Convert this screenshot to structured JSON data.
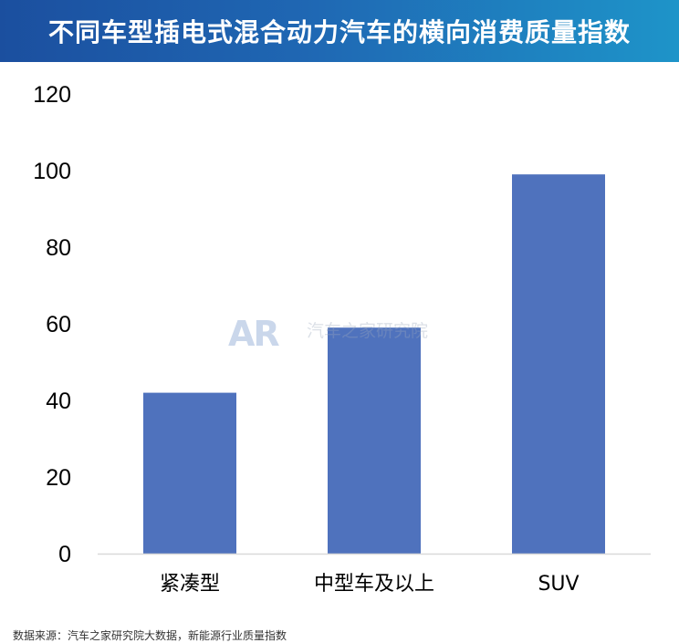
{
  "header": {
    "title": "不同车型插电式混合动力汽车的横向消费质量指数"
  },
  "watermark": {
    "logo": "AR",
    "text": "汽车之家研究院"
  },
  "source_note": "数据来源：汽车之家研究院大数据，新能源行业质量指数",
  "colors": {
    "bar": "#4f72bd",
    "axis_line": "#d9d9d9",
    "tick_text": "#000000",
    "title_bg_start": "#1b4f9f",
    "title_bg_end": "#1e94c9"
  },
  "chart_data": {
    "type": "bar",
    "title": "不同车型插电式混合动力汽车的横向消费质量指数",
    "categories": [
      "紧凑型",
      "中型车及以上",
      "SUV"
    ],
    "values": [
      42,
      59,
      99
    ],
    "ylim": [
      0,
      120
    ],
    "yticks": [
      "0",
      "20",
      "40",
      "60",
      "80",
      "100",
      "120"
    ],
    "xlabel": "",
    "ylabel": "",
    "grid": false,
    "legend": "none"
  }
}
